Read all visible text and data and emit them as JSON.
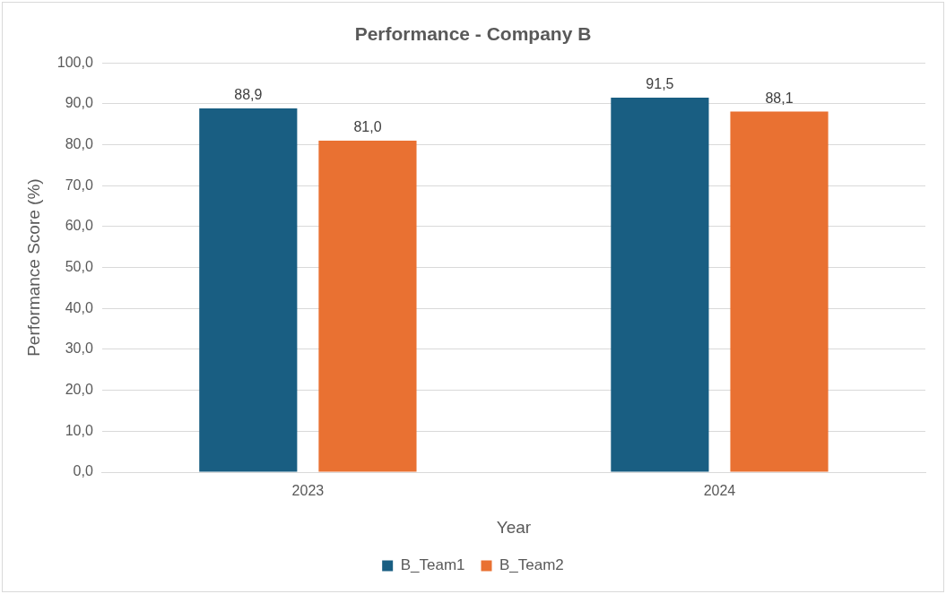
{
  "chart_data": {
    "type": "bar",
    "title": "Performance - Company B",
    "xlabel": "Year",
    "ylabel": "Performance Score (%)",
    "categories": [
      "2023",
      "2024"
    ],
    "series": [
      {
        "name": "B_Team1",
        "color": "#195e82",
        "values": [
          88.9,
          91.5
        ],
        "value_labels": [
          "88,9",
          "91,5"
        ]
      },
      {
        "name": "B_Team2",
        "color": "#e97132",
        "values": [
          81.0,
          88.1
        ],
        "value_labels": [
          "81,0",
          "88,1"
        ]
      }
    ],
    "ylim": [
      0,
      100
    ],
    "yticks": [
      {
        "value": 0,
        "label": "0,0"
      },
      {
        "value": 10,
        "label": "10,0"
      },
      {
        "value": 20,
        "label": "20,0"
      },
      {
        "value": 30,
        "label": "30,0"
      },
      {
        "value": 40,
        "label": "40,0"
      },
      {
        "value": 50,
        "label": "50,0"
      },
      {
        "value": 60,
        "label": "60,0"
      },
      {
        "value": 70,
        "label": "70,0"
      },
      {
        "value": 80,
        "label": "80,0"
      },
      {
        "value": 90,
        "label": "90,0"
      },
      {
        "value": 100,
        "label": "100,0"
      }
    ],
    "grid": "y",
    "legend": "bottom"
  }
}
